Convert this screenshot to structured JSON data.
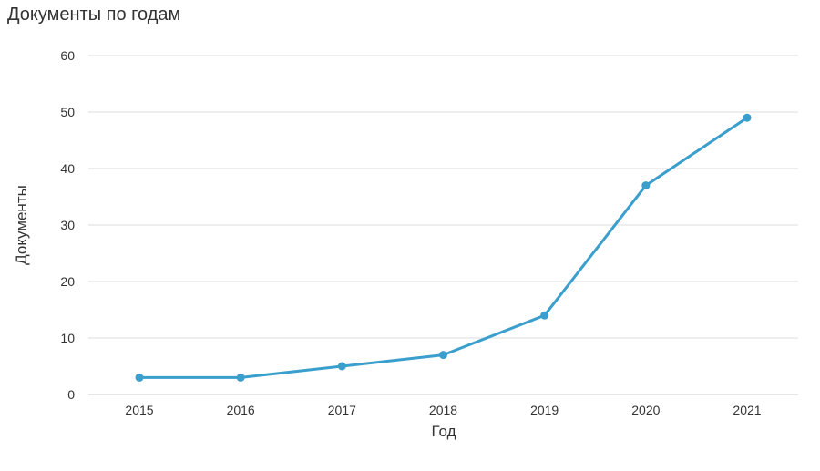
{
  "chart_data": {
    "type": "line",
    "title": "Документы по годам",
    "xlabel": "Год",
    "ylabel": "Документы",
    "categories": [
      "2015",
      "2016",
      "2017",
      "2018",
      "2019",
      "2020",
      "2021"
    ],
    "series": [
      {
        "values": [
          3,
          3,
          5,
          7,
          14,
          37,
          49
        ]
      }
    ],
    "ylim": [
      0,
      60
    ],
    "yticks": [
      "0",
      "10",
      "20",
      "30",
      "40",
      "50",
      "60"
    ],
    "grid": true,
    "legend": "none",
    "colors": {
      "line": "#3a9fcc",
      "grid": "#dddddd",
      "text": "#333333"
    }
  }
}
